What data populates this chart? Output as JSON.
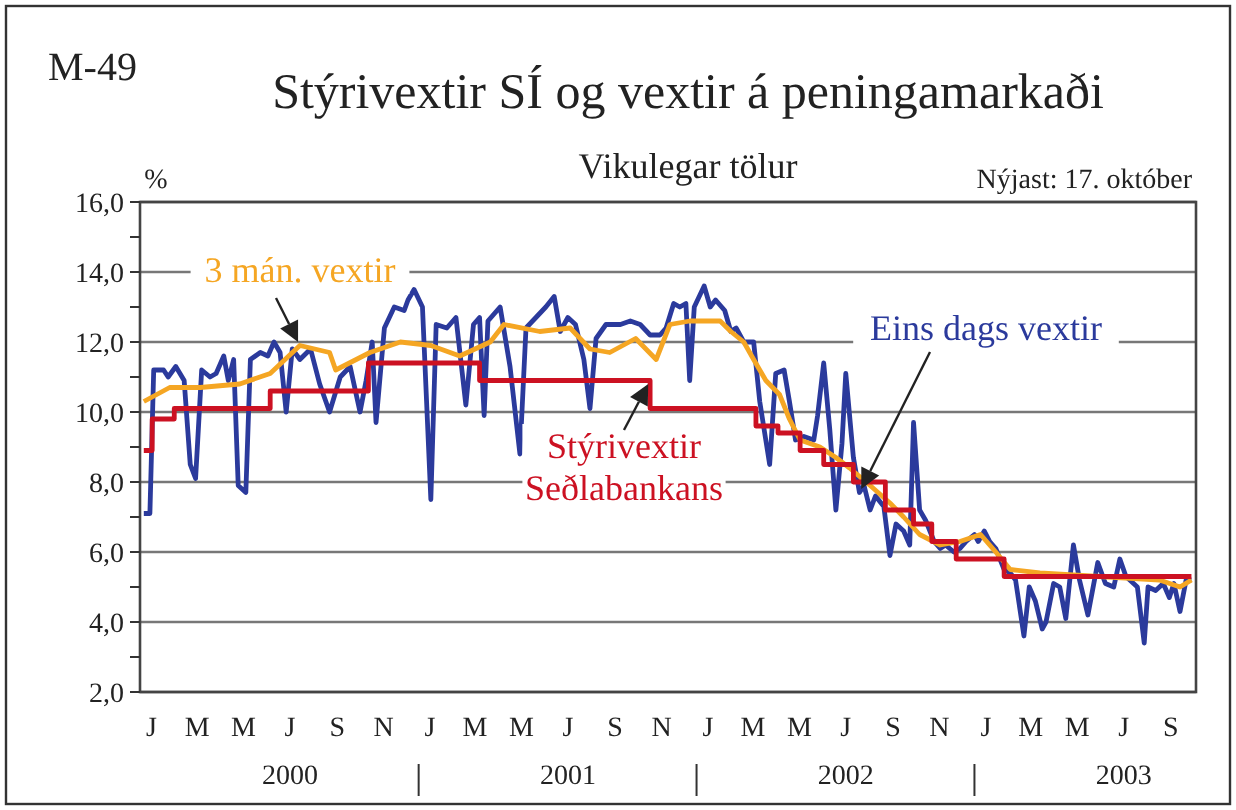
{
  "chart_data": {
    "type": "line",
    "title": "Stýrivextir SÍ og vextir á peningamarkaði",
    "subtitle": "Vikulegar tölur",
    "ylabel": "%",
    "annotations": [
      "M-49",
      "Nýjast: 17. október"
    ],
    "xlim": [
      "2000-01-01",
      "2003-10-19"
    ],
    "ylim": [
      2,
      16
    ],
    "yticks": [
      {
        "value": 2,
        "label": "2,0"
      },
      {
        "value": 3,
        "label": null
      },
      {
        "value": 4,
        "label": "4,0"
      },
      {
        "value": 5,
        "label": null
      },
      {
        "value": 6,
        "label": "6,0"
      },
      {
        "value": 7,
        "label": null
      },
      {
        "value": 8,
        "label": "8,0"
      },
      {
        "value": 9,
        "label": null
      },
      {
        "value": 10,
        "label": "10,0"
      },
      {
        "value": 11,
        "label": null
      },
      {
        "value": 12,
        "label": "12,0"
      },
      {
        "value": 13,
        "label": null
      },
      {
        "value": 14,
        "label": "14,0"
      },
      {
        "value": 15,
        "label": null
      },
      {
        "value": 16,
        "label": "16,0"
      }
    ],
    "xticks": [
      {
        "value": "2000-01-16",
        "label": "J"
      },
      {
        "value": "2000-03-16",
        "label": "M"
      },
      {
        "value": "2000-05-16",
        "label": "M"
      },
      {
        "value": "2000-07-16",
        "label": "J\n2000"
      },
      {
        "value": "2000-09-16",
        "label": "S"
      },
      {
        "value": "2000-11-16",
        "label": "N"
      },
      {
        "value": "2001-01-16",
        "label": "J"
      },
      {
        "value": "2001-03-16",
        "label": "M"
      },
      {
        "value": "2001-05-16",
        "label": "M"
      },
      {
        "value": "2001-07-16",
        "label": "J\n2001"
      },
      {
        "value": "2001-09-16",
        "label": "S"
      },
      {
        "value": "2001-11-16",
        "label": "N"
      },
      {
        "value": "2002-01-16",
        "label": "J"
      },
      {
        "value": "2002-03-16",
        "label": "M"
      },
      {
        "value": "2002-05-16",
        "label": "M"
      },
      {
        "value": "2002-07-16",
        "label": "J\n2002"
      },
      {
        "value": "2002-09-16",
        "label": "S"
      },
      {
        "value": "2002-11-16",
        "label": "N"
      },
      {
        "value": "2003-01-16",
        "label": "J"
      },
      {
        "value": "2003-03-16",
        "label": "M"
      },
      {
        "value": "2003-05-16",
        "label": "M"
      },
      {
        "value": "2003-07-16",
        "label": "J\n2003"
      },
      {
        "value": "2003-09-16",
        "label": "S"
      }
    ],
    "grid": "y",
    "legend": false,
    "marker": "none",
    "line_style": "solid",
    "series": [
      {
        "name": "Eins dags vextir",
        "color": "#2b3a9c",
        "x": [
          "2000-01-06",
          "2000-01-14",
          "2000-01-19",
          "2000-02-01",
          "2000-02-07",
          "2000-02-17",
          "2000-02-28",
          "2000-03-07",
          "2000-03-14",
          "2000-03-22",
          "2000-04-02",
          "2000-04-10",
          "2000-04-20",
          "2000-04-26",
          "2000-05-03",
          "2000-05-09",
          "2000-05-19",
          "2000-05-25",
          "2000-06-07",
          "2000-06-17",
          "2000-06-25",
          "2000-07-03",
          "2000-07-11",
          "2000-07-19",
          "2000-07-29",
          "2000-08-12",
          "2000-08-24",
          "2000-09-06",
          "2000-09-20",
          "2000-10-03",
          "2000-10-16",
          "2000-10-24",
          "2000-11-01",
          "2000-11-06",
          "2000-11-17",
          "2000-11-30",
          "2000-12-13",
          "2000-12-18",
          "2000-12-26",
          "2001-01-06",
          "2001-01-17",
          "2001-01-24",
          "2001-02-07",
          "2001-02-19",
          "2001-03-04",
          "2001-03-14",
          "2001-03-22",
          "2001-03-28",
          "2001-04-02",
          "2001-04-18",
          "2001-05-01",
          "2001-05-14",
          "2001-05-22",
          "2001-06-04",
          "2001-06-17",
          "2001-06-28",
          "2001-07-06",
          "2001-07-16",
          "2001-07-26",
          "2001-08-06",
          "2001-08-14",
          "2001-08-22",
          "2001-09-04",
          "2001-09-23",
          "2001-10-06",
          "2001-10-19",
          "2001-11-01",
          "2001-11-14",
          "2001-11-22",
          "2001-12-02",
          "2001-12-10",
          "2001-12-18",
          "2001-12-23",
          "2001-12-29",
          "2002-01-11",
          "2002-01-19",
          "2002-01-26",
          "2002-02-07",
          "2002-02-15",
          "2002-02-22",
          "2002-03-04",
          "2002-03-17",
          "2002-03-25",
          "2002-04-07",
          "2002-04-15",
          "2002-04-26",
          "2002-05-03",
          "2002-05-11",
          "2002-05-22",
          "2002-06-04",
          "2002-06-09",
          "2002-06-17",
          "2002-06-25",
          "2002-07-03",
          "2002-07-11",
          "2002-07-16",
          "2002-07-26",
          "2002-08-03",
          "2002-08-09",
          "2002-08-17",
          "2002-08-24",
          "2002-09-04",
          "2002-09-12",
          "2002-09-20",
          "2002-09-30",
          "2002-10-08",
          "2002-10-13",
          "2002-10-21",
          "2002-10-29",
          "2002-11-09",
          "2002-11-17",
          "2002-11-24",
          "2002-12-05",
          "2002-12-13",
          "2002-12-21",
          "2003-01-01",
          "2003-01-06",
          "2003-01-14",
          "2003-01-21",
          "2003-01-29",
          "2003-02-09",
          "2003-02-17",
          "2003-02-24",
          "2003-03-07",
          "2003-03-14",
          "2003-03-22",
          "2003-03-31",
          "2003-04-05",
          "2003-04-15",
          "2003-04-23",
          "2003-05-01",
          "2003-05-11",
          "2003-05-19",
          "2003-05-30",
          "2003-06-12",
          "2003-06-22",
          "2003-07-03",
          "2003-07-11",
          "2003-07-19",
          "2003-07-29",
          "2003-08-03",
          "2003-08-12",
          "2003-08-17",
          "2003-08-27",
          "2003-09-06",
          "2003-09-14",
          "2003-09-20",
          "2003-09-28",
          "2003-10-06",
          "2003-10-13"
        ],
        "values": [
          7.1,
          7.1,
          11.2,
          11.2,
          11.0,
          11.3,
          10.9,
          8.5,
          8.1,
          11.2,
          11.0,
          11.1,
          11.6,
          10.9,
          11.5,
          7.9,
          7.7,
          11.5,
          11.7,
          11.6,
          12.0,
          11.7,
          10.0,
          11.8,
          11.5,
          11.8,
          10.8,
          10.0,
          11.0,
          11.3,
          10.0,
          10.9,
          12.0,
          9.7,
          12.4,
          13.0,
          12.9,
          13.2,
          13.5,
          13.0,
          7.5,
          12.5,
          12.4,
          12.7,
          10.2,
          12.5,
          12.7,
          9.9,
          12.6,
          13.0,
          11.3,
          8.8,
          12.4,
          12.7,
          13.0,
          13.3,
          12.3,
          12.7,
          12.5,
          11.5,
          10.1,
          12.1,
          12.5,
          12.5,
          12.6,
          12.5,
          12.2,
          12.2,
          12.4,
          13.1,
          13.0,
          13.1,
          10.9,
          13.0,
          13.6,
          13.0,
          13.2,
          12.9,
          12.3,
          12.4,
          12.0,
          12.0,
          10.3,
          8.5,
          11.1,
          11.2,
          10.3,
          9.2,
          9.3,
          9.2,
          9.9,
          11.4,
          9.5,
          7.2,
          9.1,
          11.1,
          8.7,
          7.7,
          7.9,
          7.2,
          7.6,
          7.3,
          5.9,
          6.8,
          6.6,
          6.2,
          9.7,
          7.2,
          6.9,
          6.3,
          6.1,
          6.2,
          6.0,
          6.1,
          6.3,
          6.5,
          6.3,
          6.6,
          6.3,
          6.1,
          5.5,
          5.4,
          5.2,
          3.6,
          5.0,
          4.6,
          3.8,
          4.0,
          5.1,
          5.0,
          4.1,
          6.2,
          5.2,
          4.2,
          5.7,
          5.1,
          5.0,
          5.8,
          5.3,
          5.1,
          5.0,
          3.4,
          5.0,
          4.9,
          5.1,
          4.7,
          5.1,
          4.3,
          5.2,
          5.2
        ]
      },
      {
        "name": "3 mán. vextir",
        "color": "#f5a623",
        "x": [
          "2000-01-06",
          "2000-02-09",
          "2000-03-20",
          "2000-05-11",
          "2000-06-20",
          "2000-07-29",
          "2000-09-06",
          "2000-09-14",
          "2000-10-29",
          "2000-12-08",
          "2001-01-17",
          "2001-02-24",
          "2001-04-05",
          "2001-04-23",
          "2001-06-09",
          "2001-07-19",
          "2001-08-14",
          "2001-09-09",
          "2001-10-13",
          "2001-11-09",
          "2001-11-27",
          "2001-12-23",
          "2002-02-01",
          "2002-02-15",
          "2002-03-04",
          "2002-03-17",
          "2002-04-02",
          "2002-04-20",
          "2002-05-03",
          "2002-05-17",
          "2002-06-12",
          "2002-07-03",
          "2002-07-21",
          "2002-08-17",
          "2002-09-12",
          "2002-09-30",
          "2002-10-21",
          "2002-11-17",
          "2002-12-13",
          "2003-01-09",
          "2003-01-29",
          "2003-02-17",
          "2003-03-28",
          "2003-06-14",
          "2003-09-01",
          "2003-09-28",
          "2003-10-13"
        ],
        "values": [
          10.3,
          10.7,
          10.7,
          10.8,
          11.1,
          11.9,
          11.7,
          11.2,
          11.7,
          12.0,
          11.9,
          11.6,
          12.0,
          12.5,
          12.3,
          12.4,
          11.8,
          11.7,
          12.1,
          11.5,
          12.5,
          12.6,
          12.6,
          12.3,
          12.0,
          11.5,
          10.9,
          10.5,
          9.8,
          9.2,
          9.0,
          8.7,
          8.4,
          7.9,
          7.4,
          7.0,
          6.5,
          6.2,
          6.3,
          6.5,
          6.0,
          5.5,
          5.4,
          5.3,
          5.2,
          5.0,
          5.2
        ]
      },
      {
        "name": "Stýrivextir\nSeðlabankans",
        "type": "step",
        "color": "#cc1122",
        "x": [
          "2000-01-06",
          "2000-01-17",
          "2000-02-15",
          "2000-06-20",
          "2000-10-27",
          "2001-03-22",
          "2001-11-01",
          "2002-03-20",
          "2002-04-18",
          "2002-05-17",
          "2002-06-17",
          "2002-07-26",
          "2002-09-06",
          "2002-10-13",
          "2002-11-06",
          "2002-12-08",
          "2003-02-09",
          "2003-10-13"
        ],
        "values": [
          8.9,
          9.8,
          10.1,
          10.6,
          11.4,
          10.9,
          10.1,
          9.6,
          9.4,
          8.9,
          8.5,
          8.0,
          7.2,
          6.8,
          6.3,
          5.8,
          5.3,
          5.3
        ]
      }
    ]
  }
}
